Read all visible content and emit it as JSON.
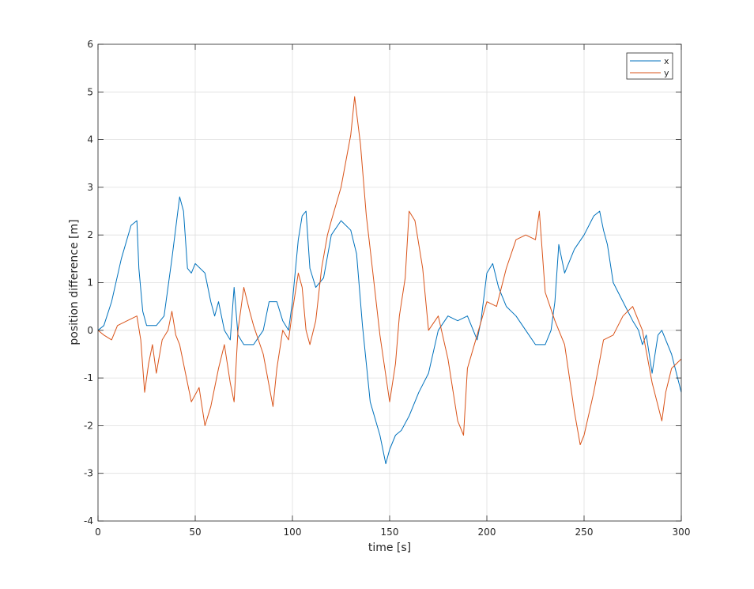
{
  "chart_data": {
    "type": "line",
    "title": "",
    "xlabel": "time [s]",
    "ylabel": "position difference [m]",
    "xlim": [
      0,
      300
    ],
    "ylim": [
      -4,
      6
    ],
    "xticks": [
      0,
      50,
      100,
      150,
      200,
      250,
      300
    ],
    "yticks": [
      -4,
      -3,
      -2,
      -1,
      0,
      1,
      2,
      3,
      4,
      5,
      6
    ],
    "grid": true,
    "legend_position": "top-right",
    "series": [
      {
        "name": "x",
        "color": "#0072BD",
        "x": [
          0,
          3,
          7,
          12,
          17,
          20,
          21,
          23,
          25,
          30,
          34,
          38,
          42,
          44,
          46,
          48,
          50,
          55,
          58,
          60,
          62,
          65,
          68,
          70,
          72,
          75,
          80,
          85,
          88,
          92,
          95,
          98,
          100,
          103,
          105,
          107,
          109,
          112,
          116,
          120,
          125,
          130,
          133,
          136,
          140,
          145,
          148,
          150,
          153,
          156,
          160,
          165,
          170,
          175,
          180,
          185,
          190,
          193,
          195,
          197,
          200,
          203,
          206,
          210,
          215,
          220,
          225,
          230,
          233,
          235,
          237,
          240,
          245,
          250,
          255,
          258,
          260,
          262,
          265,
          270,
          275,
          278,
          280,
          282,
          285,
          288,
          290,
          295,
          300
        ],
        "values": [
          0.0,
          0.1,
          0.6,
          1.5,
          2.2,
          2.3,
          1.3,
          0.4,
          0.1,
          0.1,
          0.3,
          1.5,
          2.8,
          2.5,
          1.3,
          1.2,
          1.4,
          1.2,
          0.6,
          0.3,
          0.6,
          0.0,
          -0.2,
          0.9,
          -0.1,
          -0.3,
          -0.3,
          0.0,
          0.6,
          0.6,
          0.2,
          0.0,
          0.6,
          1.9,
          2.4,
          2.5,
          1.3,
          0.9,
          1.1,
          2.0,
          2.3,
          2.1,
          1.6,
          0.1,
          -1.5,
          -2.2,
          -2.8,
          -2.5,
          -2.2,
          -2.1,
          -1.8,
          -1.3,
          -0.9,
          0.0,
          0.3,
          0.2,
          0.3,
          0.0,
          -0.2,
          0.2,
          1.2,
          1.4,
          0.9,
          0.5,
          0.3,
          0.0,
          -0.3,
          -0.3,
          0.0,
          0.6,
          1.8,
          1.2,
          1.7,
          2.0,
          2.4,
          2.5,
          2.1,
          1.8,
          1.0,
          0.6,
          0.2,
          0.0,
          -0.3,
          -0.1,
          -0.9,
          -0.1,
          0.0,
          -0.5,
          -1.3
        ]
      },
      {
        "name": "y",
        "color": "#D95319",
        "x": [
          0,
          3,
          7,
          10,
          15,
          20,
          22,
          24,
          26,
          28,
          30,
          33,
          36,
          38,
          40,
          42,
          45,
          48,
          52,
          55,
          58,
          62,
          65,
          68,
          70,
          72,
          75,
          78,
          80,
          85,
          90,
          92,
          95,
          98,
          100,
          103,
          105,
          107,
          109,
          112,
          115,
          118,
          120,
          125,
          130,
          132,
          135,
          138,
          140,
          145,
          150,
          153,
          155,
          158,
          160,
          163,
          165,
          167,
          170,
          175,
          180,
          185,
          188,
          190,
          195,
          200,
          205,
          210,
          215,
          220,
          225,
          227,
          230,
          235,
          240,
          245,
          248,
          250,
          255,
          260,
          265,
          270,
          275,
          280,
          285,
          290,
          292,
          295,
          300
        ],
        "values": [
          0.0,
          -0.1,
          -0.2,
          0.1,
          0.2,
          0.3,
          -0.2,
          -1.3,
          -0.7,
          -0.3,
          -0.9,
          -0.2,
          0.0,
          0.4,
          -0.1,
          -0.3,
          -0.9,
          -1.5,
          -1.2,
          -2.0,
          -1.6,
          -0.8,
          -0.3,
          -1.1,
          -1.5,
          0.0,
          0.9,
          0.4,
          0.1,
          -0.5,
          -1.6,
          -0.8,
          0.0,
          -0.2,
          0.4,
          1.2,
          0.9,
          0.0,
          -0.3,
          0.2,
          1.3,
          2.0,
          2.3,
          3.0,
          4.1,
          4.9,
          3.9,
          2.4,
          1.7,
          -0.1,
          -1.5,
          -0.7,
          0.3,
          1.1,
          2.5,
          2.3,
          1.8,
          1.3,
          0.0,
          0.3,
          -0.6,
          -1.9,
          -2.2,
          -0.8,
          -0.1,
          0.6,
          0.5,
          1.3,
          1.9,
          2.0,
          1.9,
          2.5,
          0.8,
          0.2,
          -0.3,
          -1.7,
          -2.4,
          -2.2,
          -1.3,
          -0.2,
          -0.1,
          0.3,
          0.5,
          0.0,
          -1.1,
          -1.9,
          -1.3,
          -0.8,
          -0.6
        ]
      }
    ]
  }
}
